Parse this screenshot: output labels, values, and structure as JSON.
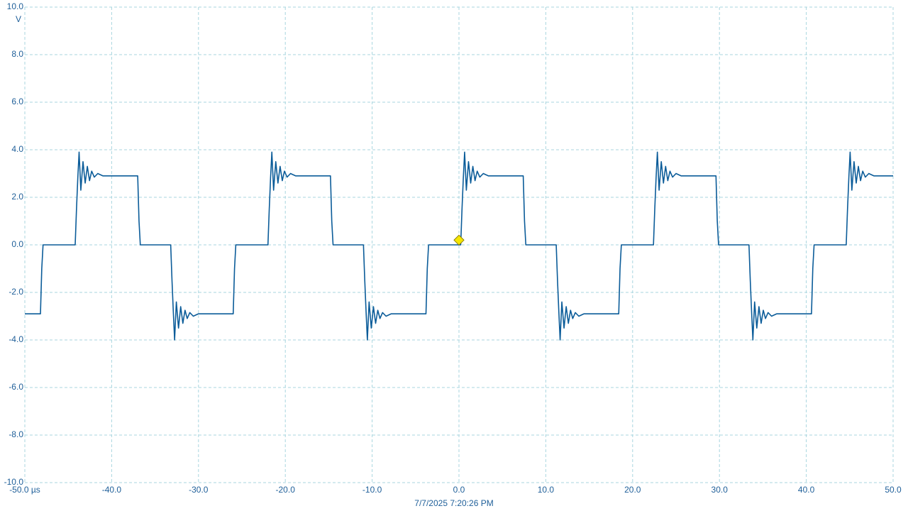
{
  "chart_data": {
    "type": "line",
    "y_unit": "V",
    "timestamp": "7/7/2025 7:20:26 PM",
    "xlim": [
      -50,
      50
    ],
    "ylim": [
      -10,
      10
    ],
    "xticks": [
      {
        "value": -50,
        "label": "-50.0 µs"
      },
      {
        "value": -40,
        "label": "-40.0"
      },
      {
        "value": -30,
        "label": "-30.0"
      },
      {
        "value": -20,
        "label": "-20.0"
      },
      {
        "value": -10,
        "label": "-10.0"
      },
      {
        "value": 0,
        "label": "0.0"
      },
      {
        "value": 10,
        "label": "10.0"
      },
      {
        "value": 20,
        "label": "20.0"
      },
      {
        "value": 30,
        "label": "30.0"
      },
      {
        "value": 40,
        "label": "40.0"
      },
      {
        "value": 50,
        "label": "50.0"
      }
    ],
    "yticks": [
      {
        "value": 10,
        "label": "10.0"
      },
      {
        "value": 8,
        "label": "8.0"
      },
      {
        "value": 6,
        "label": "6.0"
      },
      {
        "value": 4,
        "label": "4.0"
      },
      {
        "value": 2,
        "label": "2.0"
      },
      {
        "value": 0,
        "label": "0.0"
      },
      {
        "value": -2,
        "label": "-2.0"
      },
      {
        "value": -4,
        "label": "-4.0"
      },
      {
        "value": -6,
        "label": "-6.0"
      },
      {
        "value": -8,
        "label": "-8.0"
      },
      {
        "value": -10,
        "label": "-10.0"
      }
    ],
    "grid": true,
    "trigger": {
      "x": 0.0,
      "y": 0.2,
      "color": "#f5e600"
    },
    "series": [
      {
        "color": "#0b5c99",
        "x": [
          -50,
          -48.2,
          -48.05,
          -47.9,
          -44.2,
          -44.05,
          -43.9,
          -43.75,
          -43.55,
          -43.3,
          -43.05,
          -42.8,
          -42.55,
          -42.3,
          -42.0,
          -41.6,
          -41.0,
          -37.0,
          -36.85,
          -36.7,
          -33.2,
          -33.05,
          -32.9,
          -32.75,
          -32.55,
          -32.3,
          -32.05,
          -31.8,
          -31.55,
          -31.3,
          -31.0,
          -30.6,
          -30.0,
          -26.0,
          -25.85,
          -25.7,
          -22.0,
          -21.85,
          -21.7,
          -21.55,
          -21.35,
          -21.1,
          -20.85,
          -20.6,
          -20.35,
          -20.1,
          -19.8,
          -19.4,
          -18.8,
          -14.8,
          -14.65,
          -14.5,
          -11.0,
          -10.85,
          -10.7,
          -10.55,
          -10.35,
          -10.1,
          -9.85,
          -9.6,
          -9.35,
          -9.1,
          -8.8,
          -8.4,
          -7.8,
          -3.8,
          -3.65,
          -3.5,
          0.2,
          0.35,
          0.5,
          0.65,
          0.85,
          1.1,
          1.35,
          1.6,
          1.85,
          2.1,
          2.4,
          2.8,
          3.4,
          7.4,
          7.55,
          7.7,
          11.2,
          11.35,
          11.5,
          11.65,
          11.85,
          12.1,
          12.35,
          12.6,
          12.85,
          13.1,
          13.4,
          13.8,
          14.4,
          18.4,
          18.55,
          18.7,
          22.4,
          22.55,
          22.7,
          22.85,
          23.05,
          23.3,
          23.55,
          23.8,
          24.05,
          24.3,
          24.6,
          25.0,
          25.6,
          29.6,
          29.75,
          29.9,
          33.4,
          33.55,
          33.7,
          33.85,
          34.05,
          34.3,
          34.55,
          34.8,
          35.05,
          35.3,
          35.6,
          36.0,
          36.6,
          40.6,
          40.75,
          40.9,
          44.6,
          44.75,
          44.9,
          45.05,
          45.25,
          45.5,
          45.75,
          46.0,
          46.25,
          46.5,
          46.8,
          47.2,
          47.8,
          50.0
        ],
        "values": [
          -2.9,
          -2.9,
          -1.0,
          0.0,
          0.0,
          1.5,
          2.8,
          3.9,
          2.3,
          3.5,
          2.6,
          3.3,
          2.7,
          3.1,
          2.85,
          3.0,
          2.9,
          2.9,
          1.0,
          0.0,
          0.0,
          -1.5,
          -2.8,
          -4.0,
          -2.4,
          -3.5,
          -2.6,
          -3.3,
          -2.75,
          -3.1,
          -2.85,
          -3.0,
          -2.9,
          -2.9,
          -1.0,
          0.0,
          0.0,
          1.5,
          2.8,
          3.9,
          2.3,
          3.5,
          2.6,
          3.3,
          2.7,
          3.1,
          2.85,
          3.0,
          2.9,
          2.9,
          1.0,
          0.0,
          0.0,
          -1.5,
          -2.8,
          -4.0,
          -2.4,
          -3.5,
          -2.6,
          -3.3,
          -2.75,
          -3.1,
          -2.85,
          -3.0,
          -2.9,
          -2.9,
          -1.0,
          0.0,
          0.0,
          1.5,
          2.8,
          3.9,
          2.3,
          3.5,
          2.6,
          3.3,
          2.7,
          3.1,
          2.85,
          3.0,
          2.9,
          2.9,
          1.0,
          0.0,
          0.0,
          -1.5,
          -2.8,
          -4.0,
          -2.4,
          -3.5,
          -2.6,
          -3.3,
          -2.75,
          -3.1,
          -2.85,
          -3.0,
          -2.9,
          -2.9,
          -1.0,
          0.0,
          0.0,
          1.5,
          2.8,
          3.9,
          2.3,
          3.5,
          2.6,
          3.3,
          2.7,
          3.1,
          2.85,
          3.0,
          2.9,
          2.9,
          1.0,
          0.0,
          0.0,
          -1.5,
          -2.8,
          -4.0,
          -2.4,
          -3.5,
          -2.6,
          -3.3,
          -2.75,
          -3.1,
          -2.85,
          -3.0,
          -2.9,
          -2.9,
          -1.0,
          0.0,
          0.0,
          1.5,
          2.8,
          3.9,
          2.3,
          3.5,
          2.6,
          3.3,
          2.7,
          3.1,
          2.85,
          3.0,
          2.9,
          2.9
        ]
      }
    ]
  }
}
